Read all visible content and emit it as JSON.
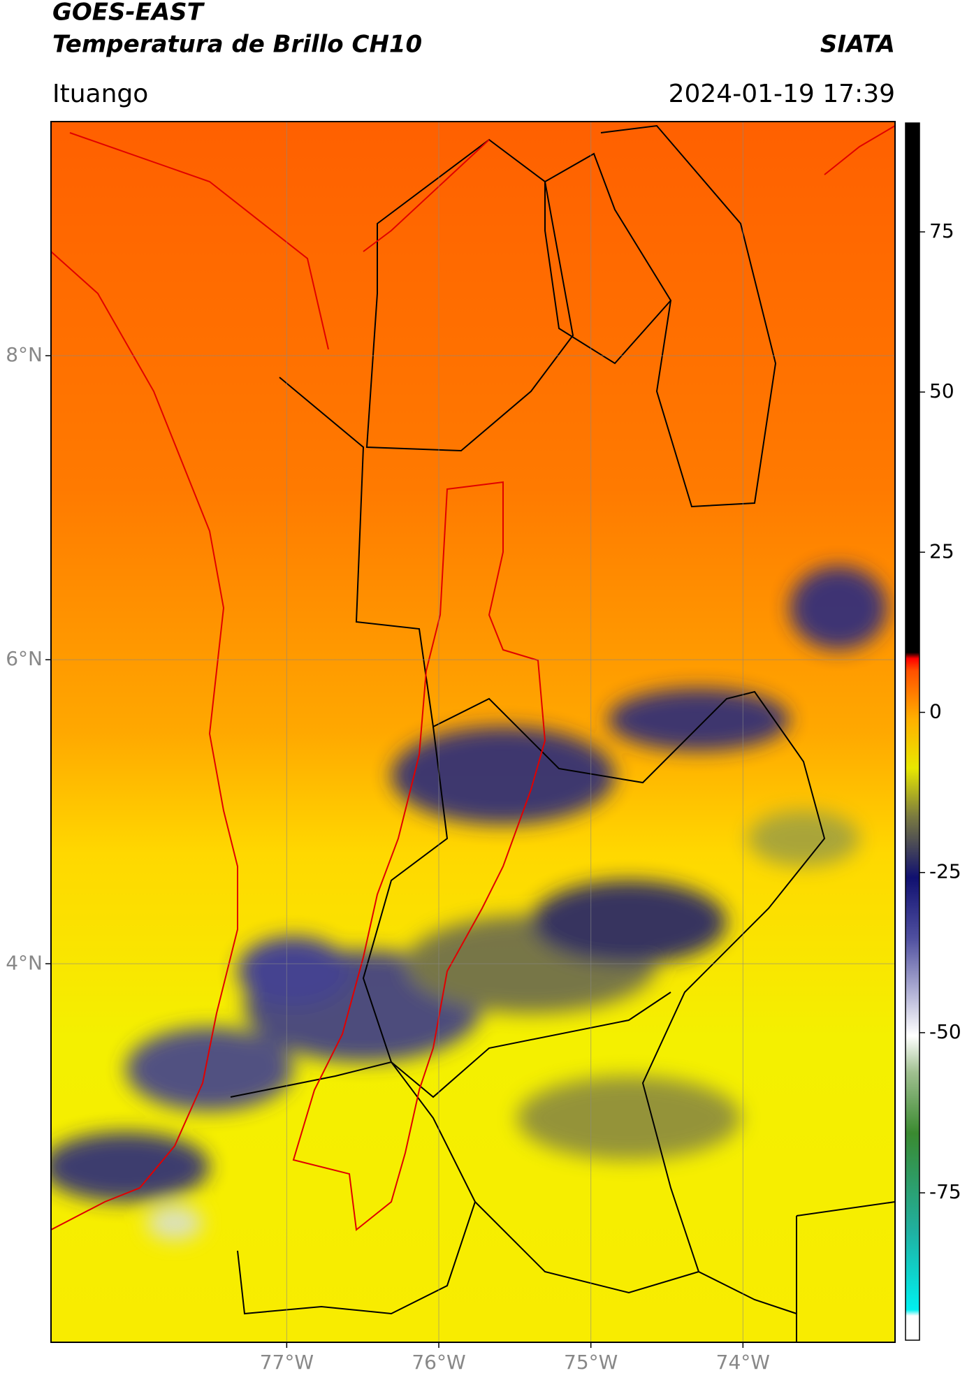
{
  "header": {
    "title": "GOES-EAST",
    "subtitle": "Temperatura de Brillo CH10",
    "source": "SIATA",
    "region": "Ituango",
    "datetime": "2024-01-19 17:39"
  },
  "map": {
    "lon_range": [
      -78.55,
      -73.0
    ],
    "lat_range": [
      1.51,
      9.54
    ],
    "lat_ticks": [
      {
        "value": 8,
        "label": "8°N"
      },
      {
        "value": 6,
        "label": "6°N"
      },
      {
        "value": 4,
        "label": "4°N"
      }
    ],
    "lon_ticks": [
      {
        "value": -77,
        "label": "77°W"
      },
      {
        "value": -76,
        "label": "76°W"
      },
      {
        "value": -75,
        "label": "75°W"
      },
      {
        "value": -74,
        "label": "74°W"
      }
    ],
    "grid": true
  },
  "colorbar": {
    "lim": [
      -98,
      92
    ],
    "ticks": [
      75,
      50,
      25,
      0,
      -25,
      -50,
      -75
    ]
  }
}
